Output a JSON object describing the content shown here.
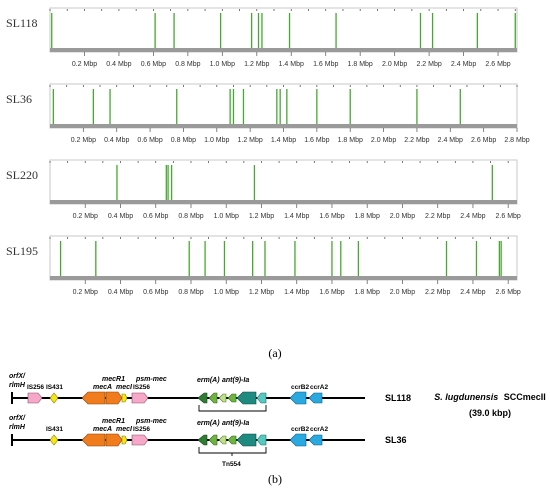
{
  "panel_a": {
    "label": "(a)",
    "tracks": [
      {
        "name": "SL118",
        "genome_mbp": 2.71,
        "tick_labels": [
          "0.2 Mbp",
          "0.4 Mbp",
          "0.6 Mbp",
          "0.8 Mbp",
          "1.0 Mbp",
          "1.2 Mbp",
          "1.4 Mbp",
          "1.6 Mbp",
          "1.8 Mbp",
          "2.0 Mbp",
          "2.2 Mbp",
          "2.4 Mbp",
          "2.6 Mbp"
        ],
        "marks_mbp": [
          0.01,
          0.61,
          0.72,
          0.99,
          1.17,
          1.21,
          1.23,
          1.39,
          1.66,
          2.15,
          2.22,
          2.48,
          2.7
        ]
      },
      {
        "name": "SL36",
        "genome_mbp": 2.8,
        "tick_labels": [
          "0.2 Mbp",
          "0.4 Mbp",
          "0.6 Mbp",
          "0.8 Mbp",
          "1.0 Mbp",
          "1.2 Mbp",
          "1.4 Mbp",
          "1.6 Mbp",
          "1.8 Mbp",
          "2.0 Mbp",
          "2.2 Mbp",
          "2.4 Mbp",
          "2.6 Mbp",
          "2.8 Mbp"
        ],
        "marks_mbp": [
          0.02,
          0.26,
          0.36,
          0.76,
          1.08,
          1.1,
          1.16,
          1.36,
          1.38,
          1.42,
          1.6,
          1.8,
          2.2,
          2.46
        ]
      },
      {
        "name": "SL220",
        "genome_mbp": 2.65,
        "tick_labels": [
          "0.2 Mbp",
          "0.4 Mbp",
          "0.6 Mbp",
          "0.8 Mbp",
          "1.0 Mbp",
          "1.2 Mbp",
          "1.4 Mbp",
          "1.6 Mbp",
          "1.8 Mbp",
          "2.0 Mbp",
          "2.2 Mbp",
          "2.4 Mbp",
          "2.6 Mbp"
        ],
        "marks_mbp": [
          0.38,
          0.66,
          0.67,
          0.69,
          1.16,
          2.51
        ]
      },
      {
        "name": "SL195",
        "genome_mbp": 2.65,
        "tick_labels": [
          "0.2 Mbp",
          "0.4 Mbp",
          "0.6 Mbp",
          "0.8 Mbp",
          "1.0 Mbp",
          "1.2 Mbp",
          "1.4 Mbp",
          "1.6 Mbp",
          "1.8 Mbp",
          "2.0 Mbp",
          "2.2 Mbp",
          "2.4 Mbp",
          "2.6 Mbp"
        ],
        "marks_mbp": [
          0.06,
          0.26,
          0.79,
          0.88,
          0.99,
          1.15,
          1.22,
          1.39,
          1.6,
          1.65,
          1.75,
          2.25,
          2.42,
          2.55,
          2.56
        ]
      }
    ],
    "colors": {
      "mark": "#46a832",
      "axis": "#9a9a9a",
      "border": "#c8c8c8"
    }
  },
  "panel_b": {
    "label": "(b)",
    "rows": [
      {
        "strain": "SL118",
        "labels": {
          "orfx": "orfX/",
          "rlmh": "rlmH",
          "is256_left": "IS256",
          "is431": "IS431",
          "mecA": "mecA",
          "mecR1": "mecR1",
          "mecI": "mecI",
          "psm": "psm-mec",
          "is256_right": "IS256",
          "ermA": "erm(A)",
          "ant": "ant(9)-Ia",
          "ccrB2": "ccrB2",
          "ccrA2": "ccrA2"
        }
      },
      {
        "strain": "SL36",
        "labels": {
          "orfx": "orfX/",
          "rlmh": "rlmH",
          "is431": "IS431",
          "mecA": "mecA",
          "mecR1": "mecR1",
          "mecI": "mecI",
          "psm": "psm-mec",
          "is256_right": "IS256",
          "ermA": "erm(A)",
          "ant": "ant(9)-Ia",
          "ccrB2": "ccrB2",
          "ccrA2": "ccrA2"
        }
      }
    ],
    "transposon_label": "Tn554",
    "species": "S. lugdunensis",
    "element": "SCCmecII",
    "size": "(39.0 kbp)",
    "colors": {
      "is256": "#f7a8c8",
      "is431": "#f5e616",
      "mec": "#f07c1e",
      "tn554_dark": "#2e7d32",
      "tn554_mid": "#6fb43f",
      "tn554_light": "#bfe08a",
      "tn554_teal": "#1f8a80",
      "tn554_cyan": "#56c9c2",
      "ccr": "#2aa9e0"
    }
  }
}
